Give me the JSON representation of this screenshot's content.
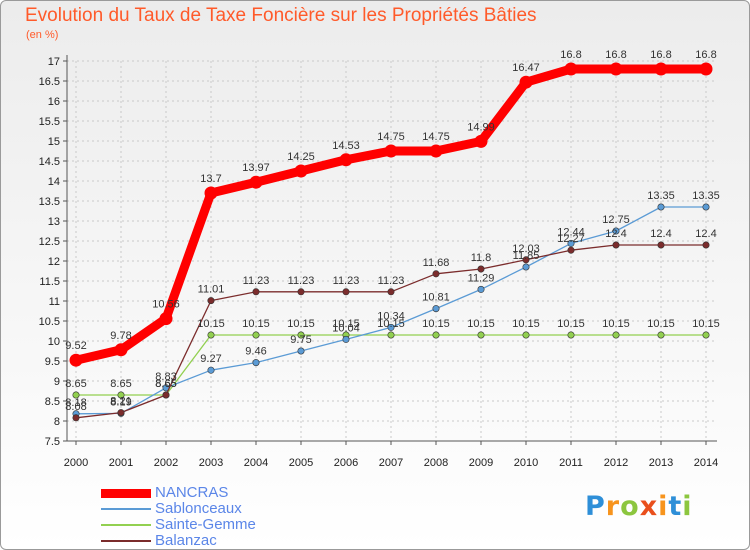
{
  "header": {
    "title": "Evolution du Taux de Taxe Foncière sur les Propriétés Bâties",
    "unit": "(en %)"
  },
  "chart_data": {
    "type": "line",
    "title": "Evolution du Taux de Taxe Foncière sur les Propriétés Bâties",
    "ylabel": "(en %)",
    "xlabel": "",
    "ylim": [
      7.5,
      17
    ],
    "y_ticks": [
      7.5,
      8,
      8.5,
      9,
      9.5,
      10,
      10.5,
      11,
      11.5,
      12,
      12.5,
      13,
      13.5,
      14,
      14.5,
      15,
      15.5,
      16,
      16.5,
      17
    ],
    "categories": [
      "2000",
      "2001",
      "2002",
      "2003",
      "2004",
      "2005",
      "2006",
      "2007",
      "2008",
      "2009",
      "2010",
      "2011",
      "2012",
      "2013",
      "2014"
    ],
    "grid": true,
    "legend_position": "bottom-left",
    "series": [
      {
        "name": "NANCRAS",
        "color": "#ff0000",
        "values": [
          9.52,
          9.78,
          10.56,
          13.7,
          13.97,
          14.25,
          14.53,
          14.75,
          14.75,
          14.99,
          16.47,
          16.8,
          16.8,
          16.8,
          16.8
        ]
      },
      {
        "name": "Sablonceaux",
        "color": "#5b9bd5",
        "values": [
          8.18,
          8.19,
          8.83,
          9.27,
          9.46,
          9.75,
          10.04,
          10.34,
          10.81,
          11.29,
          11.85,
          12.44,
          12.75,
          13.35,
          13.35
        ]
      },
      {
        "name": "Sainte-Gemme",
        "color": "#92d050",
        "values": [
          8.65,
          8.65,
          8.65,
          10.15,
          10.15,
          10.15,
          10.15,
          10.15,
          10.15,
          10.15,
          10.15,
          10.15,
          10.15,
          10.15,
          10.15
        ]
      },
      {
        "name": "Balanzac",
        "color": "#7b2c2c",
        "values": [
          8.08,
          8.21,
          8.65,
          11.01,
          11.23,
          11.23,
          11.23,
          11.23,
          11.68,
          11.8,
          12.03,
          12.27,
          12.4,
          12.4,
          12.4
        ]
      }
    ]
  },
  "labels": {
    "NANCRAS": [
      "9.52",
      "9.78",
      "10.56",
      "13.7",
      "13.97",
      "14.25",
      "14.53",
      "14.75",
      "14.75",
      "14.99",
      "16.47",
      "16.8",
      "16.8",
      "16.8",
      "16.8"
    ],
    "Sablonceaux": [
      "8.18",
      "8.19",
      "8.83",
      "9.27",
      "9.46",
      "9.75",
      "10.04",
      "10.34",
      "10.81",
      "11.29",
      "11.85",
      "12.44",
      "12.75",
      "13.35",
      "13.35"
    ],
    "Sainte-Gemme": [
      "8.65",
      "8.65",
      "8.65",
      "10.15",
      "10.15",
      "10.15",
      "10.15",
      "10.15",
      "10.15",
      "10.15",
      "10.15",
      "10.15",
      "10.15",
      "10.15",
      "10.15"
    ],
    "Balanzac": [
      "8.08",
      "8.21",
      "8.65",
      "11.01",
      "11.23",
      "11.23",
      "11.23",
      "11.23",
      "11.68",
      "11.8",
      "12.03",
      "12.27",
      "12.4",
      "12.4",
      "12.4"
    ]
  },
  "logo": {
    "letters": [
      "P",
      "r",
      "o",
      "x",
      "i",
      "t",
      "i"
    ],
    "colors": [
      "#2e8fd8",
      "#f7941d",
      "#8cc63f",
      "#e94f1c",
      "#f7941d",
      "#2e8fd8",
      "#8cc63f"
    ]
  }
}
